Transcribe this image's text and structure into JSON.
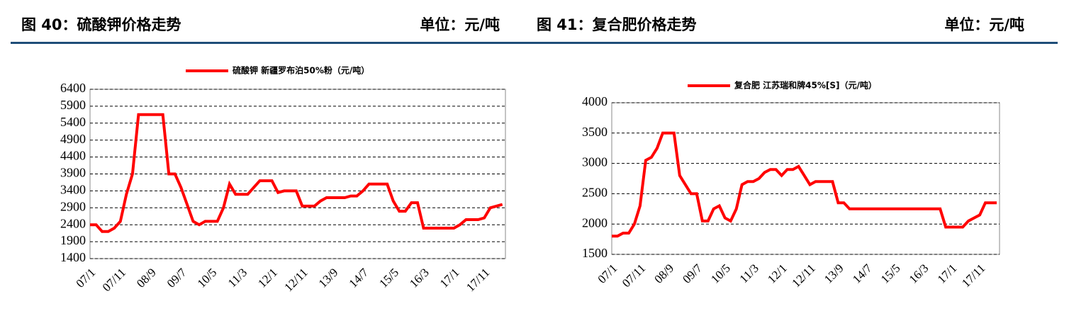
{
  "chart_data": [
    {
      "type": "line",
      "title": "图 40：硫酸钾价格走势",
      "unit": "单位：元/吨",
      "categories": [
        "07/1",
        null,
        null,
        null,
        null,
        "07/11",
        null,
        null,
        null,
        null,
        "08/9",
        null,
        null,
        null,
        null,
        "09/7",
        null,
        null,
        null,
        null,
        "10/5",
        null,
        null,
        null,
        null,
        "11/3",
        null,
        null,
        null,
        null,
        "12/1",
        null,
        null,
        null,
        null,
        "12/11",
        null,
        null,
        null,
        null,
        "13/9",
        null,
        null,
        null,
        null,
        "14/7",
        null,
        null,
        null,
        null,
        "15/5",
        null,
        null,
        null,
        null,
        "16/3",
        null,
        null,
        null,
        null,
        "17/1",
        null,
        null,
        null,
        null,
        "17/11",
        null,
        null,
        null
      ],
      "series": [
        {
          "name": "硫酸钾 新疆罗布泊50%粉（元/吨）",
          "color": "#ff0000",
          "values": [
            2400,
            2400,
            2200,
            2200,
            2300,
            2500,
            3300,
            3900,
            5650,
            5650,
            5650,
            5650,
            5650,
            3900,
            3900,
            3500,
            3000,
            2500,
            2400,
            2500,
            2500,
            2500,
            2900,
            3600,
            3300,
            3300,
            3300,
            3500,
            3700,
            3700,
            3700,
            3350,
            3400,
            3400,
            3400,
            2950,
            2950,
            2950,
            3100,
            3200,
            3200,
            3200,
            3200,
            3250,
            3250,
            3400,
            3600,
            3600,
            3600,
            3600,
            3100,
            2800,
            2800,
            3050,
            3050,
            2300,
            2300,
            2300,
            2300,
            2300,
            2300,
            2400,
            2550,
            2550,
            2550,
            2600,
            2900,
            2950,
            3000
          ]
        }
      ],
      "ylim": [
        1400,
        6400
      ],
      "yticks": [
        1400,
        1900,
        2400,
        2900,
        3400,
        3900,
        4400,
        4900,
        5400,
        5900,
        6400
      ],
      "grid": true,
      "legend": "top"
    },
    {
      "type": "line",
      "title": "图 41：复合肥价格走势",
      "unit": "单位：元/吨",
      "categories": [
        "07/1",
        null,
        null,
        null,
        null,
        "07/11",
        null,
        null,
        null,
        null,
        "08/9",
        null,
        null,
        null,
        null,
        "09/7",
        null,
        null,
        null,
        null,
        "10/5",
        null,
        null,
        null,
        null,
        "11/3",
        null,
        null,
        null,
        null,
        "12/1",
        null,
        null,
        null,
        null,
        "12/11",
        null,
        null,
        null,
        null,
        "13/9",
        null,
        null,
        null,
        null,
        "14/7",
        null,
        null,
        null,
        null,
        "15/5",
        null,
        null,
        null,
        null,
        "16/3",
        null,
        null,
        null,
        null,
        "17/1",
        null,
        null,
        null,
        null,
        "17/11",
        null,
        null,
        null
      ],
      "series": [
        {
          "name": "复合肥 江苏瑞和牌45%[S]（元/吨）",
          "color": "#ff0000",
          "values": [
            1800,
            1800,
            1850,
            1850,
            2000,
            2300,
            3050,
            3100,
            3250,
            3500,
            3500,
            3500,
            2800,
            2650,
            2500,
            2500,
            2050,
            2050,
            2250,
            2300,
            2100,
            2050,
            2250,
            2650,
            2700,
            2700,
            2750,
            2850,
            2900,
            2900,
            2800,
            2900,
            2900,
            2950,
            2800,
            2650,
            2700,
            2700,
            2700,
            2700,
            2350,
            2350,
            2250,
            2250,
            2250,
            2250,
            2250,
            2250,
            2250,
            2250,
            2250,
            2250,
            2250,
            2250,
            2250,
            2250,
            2250,
            2250,
            2250,
            1950,
            1950,
            1950,
            1950,
            2050,
            2100,
            2150,
            2350,
            2350,
            2350
          ]
        }
      ],
      "ylim": [
        1500,
        4000
      ],
      "yticks": [
        1500,
        2000,
        2500,
        3000,
        3500,
        4000
      ],
      "grid": true,
      "legend": "top"
    }
  ]
}
